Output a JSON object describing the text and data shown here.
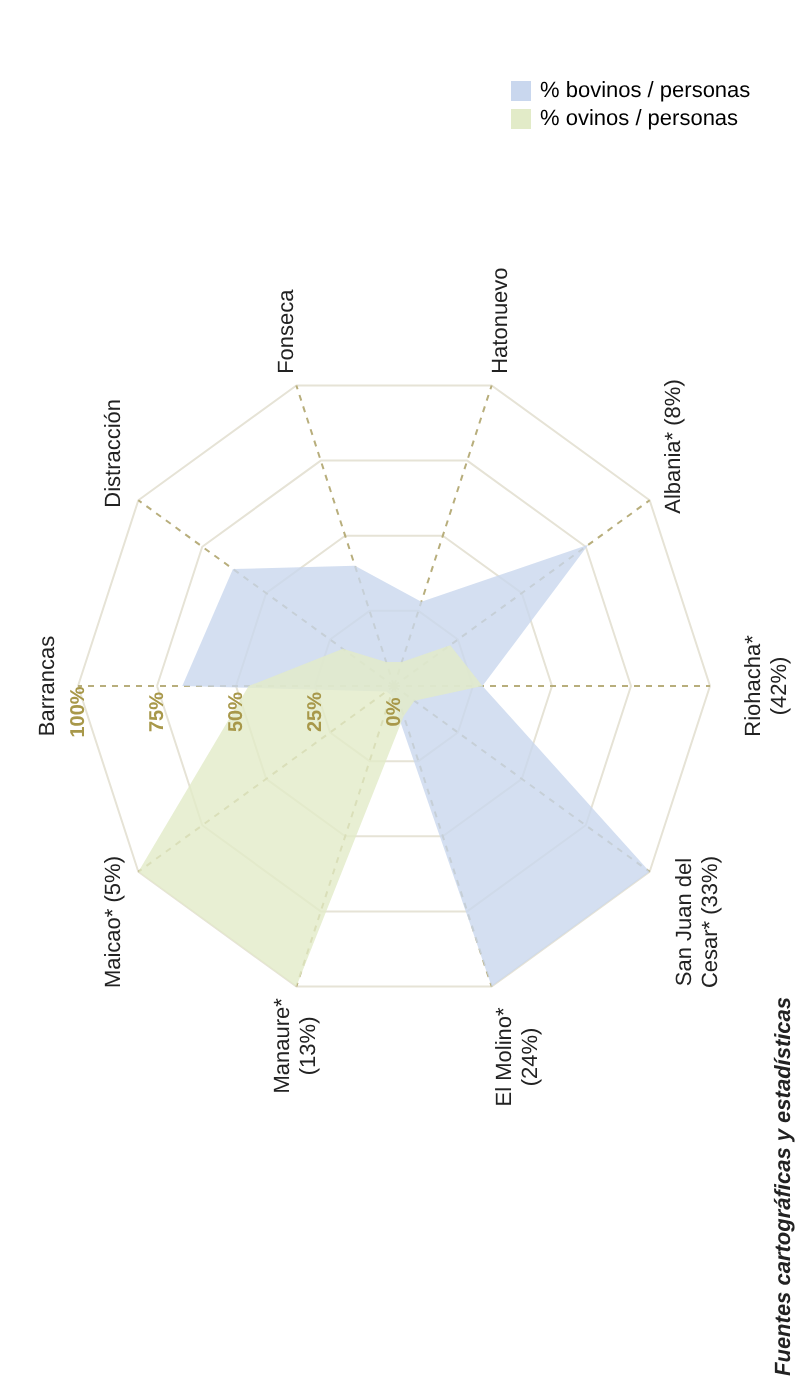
{
  "chart_data": {
    "type": "radar",
    "categories": [
      "Barrancas",
      "Distracción",
      "Fonseca",
      "Hatonuevo",
      "Albania* (8%)",
      "Riohacha* (42%)",
      "San Juan del Cesar* (33%)",
      "El Molino* (24%)",
      "Manaure* (13%)",
      "Maicao* (5%)"
    ],
    "series": [
      {
        "name": "% bovinos / personas",
        "color": "#c9d7ee",
        "values": [
          67,
          63,
          40,
          28,
          76,
          28,
          100,
          100,
          3,
          3
        ]
      },
      {
        "name": "% ovinos / personas",
        "color": "#e2ebc8",
        "values": [
          46,
          20,
          8,
          8,
          22,
          28,
          8,
          10,
          100,
          100
        ]
      }
    ],
    "ylim": [
      0,
      100
    ],
    "yticks": [
      {
        "value": 0,
        "label": "0%"
      },
      {
        "value": 25,
        "label": "25%"
      },
      {
        "value": 50,
        "label": "50%"
      },
      {
        "value": 75,
        "label": "75%"
      },
      {
        "value": 100,
        "label": "100%"
      }
    ],
    "grid": true,
    "legend": "top right",
    "annotations": [
      "Fuentes cartográficas y estadísticas"
    ]
  }
}
